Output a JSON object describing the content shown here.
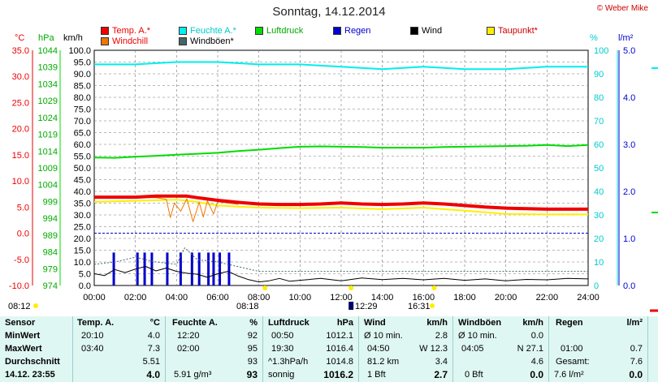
{
  "header": {
    "title": "Sonntag, 14.12.2014",
    "copyright": "© Weber Mike"
  },
  "legend": [
    {
      "label": "Temp. A.*",
      "color": "#ee0000"
    },
    {
      "label": "Feuchte A.*",
      "color": "#00eeee"
    },
    {
      "label": "Luftdruck",
      "color": "#00dd00"
    },
    {
      "label": "Regen",
      "color": "#0000cc"
    },
    {
      "label": "Wind",
      "color": "#000000"
    },
    {
      "label": "Taupunkt*",
      "color": "#ffee00"
    },
    {
      "label": "Windchill",
      "color": "#ee7700"
    },
    {
      "label": "Windböen*",
      "color": "#446666"
    }
  ],
  "axis_units": {
    "temp": "°C",
    "pressure": "hPa",
    "wind": "km/h",
    "humidity": "%",
    "rain": "l/m²"
  },
  "events": {
    "sunrise": "08:12",
    "sunrise_marker": "08:18",
    "noon": "12:29",
    "sunset": "16:31"
  },
  "chart_data": {
    "type": "line",
    "x_ticks": [
      "00:00",
      "02:00",
      "04:00",
      "06:00",
      "08:00",
      "10:00",
      "12:00",
      "14:00",
      "16:00",
      "18:00",
      "20:00",
      "22:00",
      "24:00"
    ],
    "axes": {
      "temp": {
        "ticks": [
          "35.0",
          "30.0",
          "25.0",
          "20.0",
          "15.0",
          "10.0",
          "5.0",
          "0.0",
          "-5.0",
          "-10.0"
        ],
        "range": [
          -10,
          35
        ]
      },
      "pressure": {
        "ticks": [
          "1044",
          "1039",
          "1034",
          "1029",
          "1024",
          "1019",
          "1014",
          "1009",
          "1004",
          "999",
          "994",
          "989",
          "984",
          "979",
          "974"
        ],
        "range": [
          974,
          1044
        ]
      },
      "wind": {
        "ticks": [
          "100.0",
          "95.0",
          "90.0",
          "85.0",
          "80.0",
          "75.0",
          "70.0",
          "65.0",
          "60.0",
          "55.0",
          "50.0",
          "45.0",
          "40.0",
          "35.0",
          "30.0",
          "25.0",
          "20.0",
          "15.0",
          "10.0",
          "5.0",
          "0.0"
        ],
        "range": [
          0,
          100
        ]
      },
      "humidity": {
        "ticks": [
          "100",
          "90",
          "80",
          "70",
          "60",
          "50",
          "40",
          "30",
          "20",
          "10",
          "0"
        ],
        "range": [
          0,
          100
        ]
      },
      "rain": {
        "ticks": [
          "5.0",
          "4.0",
          "3.0",
          "2.0",
          "1.0",
          "0.0"
        ],
        "range": [
          0,
          5
        ]
      }
    },
    "series": [
      {
        "name": "Temp. A.*",
        "axis": "temp",
        "x": [
          0,
          1,
          2,
          3,
          4,
          4.5,
          5,
          6,
          7,
          8,
          9,
          10,
          11,
          12,
          13,
          14,
          15,
          16,
          17,
          18,
          19,
          20,
          21,
          22,
          23,
          24
        ],
        "values": [
          6.9,
          6.9,
          6.9,
          7.1,
          7.1,
          7.1,
          6.8,
          6.3,
          5.9,
          5.6,
          5.5,
          5.5,
          5.6,
          5.8,
          5.6,
          5.5,
          5.6,
          5.8,
          5.6,
          5.3,
          5.0,
          4.8,
          4.7,
          4.6,
          4.6,
          4.6
        ]
      },
      {
        "name": "Feuchte A.*",
        "axis": "humidity",
        "x": [
          0,
          2,
          4,
          6,
          8,
          10,
          12,
          14,
          16,
          18,
          20,
          22,
          24
        ],
        "values": [
          94,
          94,
          95,
          95,
          94,
          94,
          93,
          92,
          93,
          92,
          92,
          93,
          93
        ]
      },
      {
        "name": "Luftdruck",
        "axis": "pressure",
        "x": [
          0,
          1,
          2,
          3,
          4,
          5,
          6,
          7,
          8,
          9,
          10,
          11,
          12,
          13,
          14,
          15,
          16,
          17,
          18,
          19,
          20,
          21,
          22,
          23,
          24
        ],
        "values": [
          1012.1,
          1012.0,
          1012.3,
          1012.6,
          1012.9,
          1013.2,
          1013.5,
          1014.0,
          1014.4,
          1014.9,
          1015.3,
          1015.4,
          1015.3,
          1015.2,
          1015.0,
          1015.0,
          1015.0,
          1015.2,
          1015.3,
          1015.4,
          1015.5,
          1015.6,
          1015.8,
          1015.5,
          1015.8
        ]
      },
      {
        "name": "Taupunkt*",
        "axis": "temp",
        "x": [
          0,
          2,
          4,
          5,
          6,
          7,
          8,
          10,
          12,
          14,
          16,
          18,
          20,
          22,
          24
        ],
        "values": [
          6.0,
          6.2,
          6.4,
          6.0,
          5.3,
          5.1,
          4.9,
          4.8,
          4.9,
          4.6,
          4.9,
          4.3,
          3.7,
          3.6,
          3.6
        ]
      },
      {
        "name": "Windchill",
        "axis": "temp",
        "x": [
          0,
          2,
          3,
          3.5,
          3.7,
          3.9,
          4.2,
          4.5,
          4.8,
          5.1,
          5.3,
          5.5,
          5.8,
          6.0,
          6.5,
          7.0
        ],
        "values": [
          6.9,
          6.9,
          6.8,
          6.5,
          3.0,
          5.8,
          4.2,
          6.6,
          2.2,
          5.9,
          3.1,
          6.2,
          3.7,
          6.0,
          5.8,
          5.5
        ]
      },
      {
        "name": "Wind",
        "axis": "wind",
        "x": [
          0,
          0.5,
          1,
          1.5,
          2,
          2.5,
          3,
          3.5,
          4,
          4.5,
          5,
          5.5,
          6,
          6.5,
          7,
          7.5,
          8,
          8.5,
          9,
          9.5,
          10,
          11,
          12,
          13,
          14,
          15,
          16,
          17,
          18,
          19,
          20,
          21,
          22,
          23,
          24
        ],
        "values": [
          5.0,
          4.2,
          6.8,
          5.5,
          7.0,
          8.1,
          6.2,
          7.4,
          6.0,
          5.2,
          4.8,
          3.5,
          5.0,
          6.0,
          4.0,
          2.5,
          1.5,
          2.0,
          3.0,
          1.8,
          2.2,
          3.0,
          2.0,
          3.2,
          2.5,
          3.0,
          2.4,
          3.0,
          2.2,
          2.8,
          2.0,
          2.6,
          2.4,
          3.0,
          2.8
        ]
      },
      {
        "name": "Windböen*",
        "axis": "wind",
        "x": [
          0,
          1,
          2,
          3,
          4,
          4.4,
          5,
          6,
          7,
          8,
          10,
          12,
          14,
          16,
          18,
          20,
          22,
          24
        ],
        "values": [
          9,
          10,
          12,
          10,
          9,
          16,
          11,
          10,
          8,
          6,
          6,
          6,
          6,
          6,
          6,
          6,
          6,
          6
        ]
      },
      {
        "name": "Regen",
        "axis": "rain",
        "type": "bar",
        "x": [
          0.95,
          2.1,
          2.45,
          2.8,
          3.55,
          4.2,
          4.75,
          5.1,
          5.55,
          5.8,
          6.1,
          6.55
        ],
        "values": [
          0.7,
          0.7,
          0.7,
          0.7,
          0.7,
          0.7,
          0.7,
          0.7,
          0.7,
          0.7,
          0.7,
          0.7
        ]
      }
    ]
  },
  "table": {
    "row_labels": [
      "Sensor",
      "MinWert",
      "MaxWert",
      "Durchschnitt",
      "14.12. 23:55"
    ],
    "temp": {
      "header": "Temp. A.",
      "unit": "°C",
      "min_time": "20:10",
      "min": "4.0",
      "max_time": "03:40",
      "max": "7.3",
      "avg": "5.51",
      "current": "4.0"
    },
    "humidity": {
      "header": "Feuchte A.",
      "unit": "%",
      "min_time": "12:20",
      "min": "92",
      "max_time": "02:00",
      "max": "95",
      "avg": "93",
      "current_extra": "5.91 g/m³",
      "current": "93"
    },
    "pressure": {
      "header": "Luftdruck",
      "unit": "hPa",
      "min_time": "00:50",
      "min": "1012.1",
      "max_time": "19:30",
      "max": "1016.4",
      "trend": "^1.3hPa/h",
      "avg": "1014.8",
      "state": "sonnig",
      "current": "1016.2"
    },
    "wind": {
      "header": "Wind",
      "unit": "km/h",
      "min_label": "Ø 10 min.",
      "min": "2.8",
      "max_time": "04:50",
      "max": "W 12.3",
      "distance": "81.2 km",
      "avg": "3.4",
      "bft": "1 Bft",
      "current": "2.7"
    },
    "gusts": {
      "header": "Windböen",
      "unit": "km/h",
      "min_label": "Ø 10 min.",
      "min": "0.0",
      "max_time": "04:05",
      "max": "N 27.1",
      "avg": "4.6",
      "bft": "0 Bft",
      "current": "0.0"
    },
    "rain": {
      "header": "Regen",
      "unit": "l/m²",
      "max_time": "01:00",
      "max": "0.7",
      "total_label": "Gesamt:",
      "total": "7.6",
      "current_extra": "7.6 l/m²",
      "current": "0.0"
    }
  }
}
